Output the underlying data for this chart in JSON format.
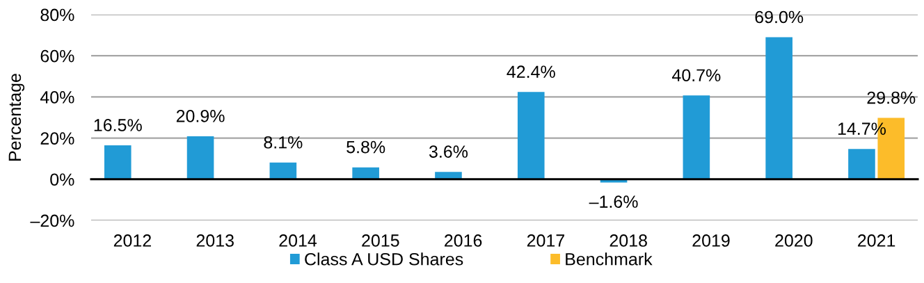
{
  "chart_data": {
    "type": "bar",
    "categories": [
      "2012",
      "2013",
      "2014",
      "2015",
      "2016",
      "2017",
      "2018",
      "2019",
      "2020",
      "2021"
    ],
    "ylabel": "Percentage",
    "ylim": [
      -20,
      80
    ],
    "yticks": [
      {
        "value": -20,
        "label": "–20%"
      },
      {
        "value": 0,
        "label": "0%"
      },
      {
        "value": 20,
        "label": "20%"
      },
      {
        "value": 40,
        "label": "40%"
      },
      {
        "value": 60,
        "label": "60%"
      },
      {
        "value": 80,
        "label": "80%"
      }
    ],
    "grid": "y",
    "legend": "bottom",
    "series": [
      {
        "name": "Class A USD Shares",
        "color": "#219bd6",
        "values": [
          16.5,
          20.9,
          8.1,
          5.8,
          3.6,
          42.4,
          -1.6,
          40.7,
          69.0,
          14.7
        ],
        "value_labels": [
          "16.5%",
          "20.9%",
          "8.1%",
          "5.8%",
          "3.6%",
          "42.4%",
          "–1.6%",
          "40.7%",
          "69.0%",
          "14.7%"
        ]
      },
      {
        "name": "Benchmark",
        "color": "#fcbc2a",
        "values": [
          null,
          null,
          null,
          null,
          null,
          null,
          null,
          null,
          null,
          29.8
        ],
        "value_labels": [
          null,
          null,
          null,
          null,
          null,
          null,
          null,
          null,
          null,
          "29.8%"
        ]
      }
    ]
  }
}
